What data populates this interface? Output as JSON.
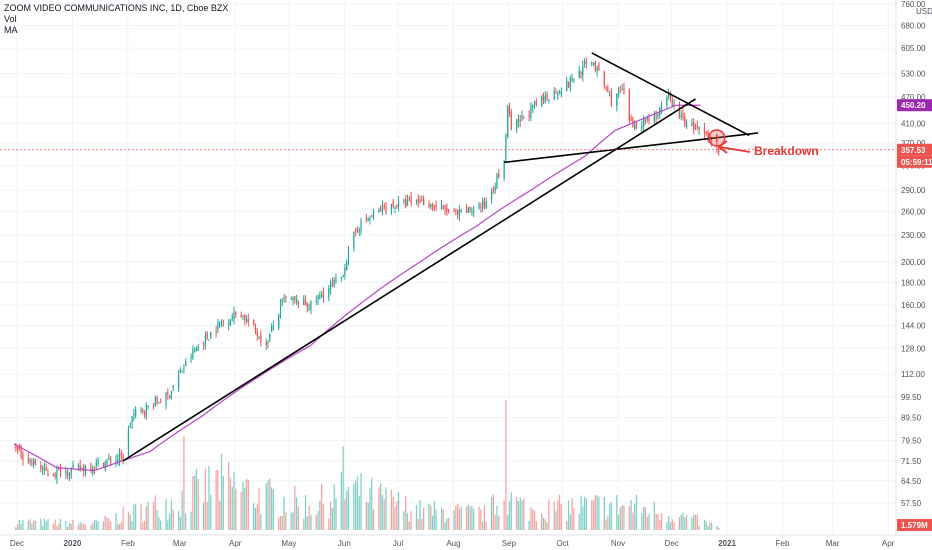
{
  "legend": {
    "title": "ZOOM VIDEO COMMUNICATIONS INC, 1D, Cboe BZX",
    "vol": "Vol",
    "ma": "MA"
  },
  "annotation": "Breakdown",
  "colors": {
    "up": "#26a69a",
    "down": "#ef5350",
    "up_vol": "#7fcfc5",
    "down_vol": "#f4a2a0",
    "ma": "#b845c8",
    "trendline": "#000000",
    "annotation": "#e53935",
    "badge_ma": "#9c27b0",
    "badge_price": "#ef5350",
    "grid": "#f0f3fa",
    "axis_text": "#50535e"
  },
  "chart_data": {
    "type": "candlestick",
    "yscale": "log",
    "ylim": [
      50,
      760
    ],
    "currency": "USD",
    "y_ticks": [
      "760.00",
      "680.00",
      "605.00",
      "530.00",
      "470.00",
      "410.00",
      "370.00",
      "330.00",
      "290.00",
      "260.00",
      "230.00",
      "200.00",
      "180.00",
      "160.00",
      "144.00",
      "128.00",
      "112.00",
      "99.50",
      "89.50",
      "79.50",
      "71.50",
      "64.50",
      "57.50"
    ],
    "x_ticks": [
      "Dec",
      "2020",
      "Feb",
      "Mar",
      "Apr",
      "May",
      "Jun",
      "Jul",
      "Aug",
      "Sep",
      "Oct",
      "Nov",
      "Dec",
      "2021",
      "Feb",
      "Mar",
      "Apr"
    ],
    "price_path": [
      [
        "2019-12-01",
        76
      ],
      [
        "2019-12-20",
        67
      ],
      [
        "2020-01-10",
        69
      ],
      [
        "2020-01-31",
        73
      ],
      [
        "2020-02-05",
        90
      ],
      [
        "2020-02-25",
        100
      ],
      [
        "2020-03-10",
        125
      ],
      [
        "2020-03-25",
        145
      ],
      [
        "2020-04-05",
        155
      ],
      [
        "2020-04-20",
        130
      ],
      [
        "2020-04-30",
        165
      ],
      [
        "2020-05-15",
        160
      ],
      [
        "2020-06-01",
        185
      ],
      [
        "2020-06-10",
        240
      ],
      [
        "2020-06-25",
        265
      ],
      [
        "2020-07-15",
        275
      ],
      [
        "2020-08-05",
        255
      ],
      [
        "2020-08-20",
        270
      ],
      [
        "2020-08-31",
        330
      ],
      [
        "2020-09-02",
        450
      ],
      [
        "2020-09-04",
        395
      ],
      [
        "2020-09-20",
        460
      ],
      [
        "2020-10-05",
        500
      ],
      [
        "2020-10-19",
        570
      ],
      [
        "2020-10-30",
        460
      ],
      [
        "2020-11-05",
        485
      ],
      [
        "2020-11-10",
        405
      ],
      [
        "2020-11-25",
        430
      ],
      [
        "2020-12-01",
        470
      ],
      [
        "2020-12-08",
        420
      ],
      [
        "2020-12-18",
        395
      ],
      [
        "2020-12-29",
        357.53
      ]
    ],
    "ma_path": [
      [
        "2019-12-01",
        78
      ],
      [
        "2019-12-25",
        69
      ],
      [
        "2020-01-15",
        68
      ],
      [
        "2020-02-15",
        75
      ],
      [
        "2020-03-15",
        90
      ],
      [
        "2020-04-15",
        110
      ],
      [
        "2020-05-15",
        130
      ],
      [
        "2020-06-15",
        165
      ],
      [
        "2020-07-15",
        200
      ],
      [
        "2020-08-15",
        240
      ],
      [
        "2020-09-15",
        290
      ],
      [
        "2020-10-15",
        345
      ],
      [
        "2020-11-01",
        395
      ],
      [
        "2020-11-20",
        425
      ],
      [
        "2020-12-05",
        450
      ],
      [
        "2020-12-20",
        450.2
      ]
    ],
    "volume_ylim": [
      0,
      90
    ],
    "volume_path": [
      [
        "2019-12-01",
        5
      ],
      [
        "2020-01-15",
        4
      ],
      [
        "2020-02-10",
        12
      ],
      [
        "2020-03-05",
        20
      ],
      [
        "2020-03-25",
        30
      ],
      [
        "2020-04-15",
        22
      ],
      [
        "2020-05-15",
        15
      ],
      [
        "2020-06-05",
        25
      ],
      [
        "2020-07-15",
        12
      ],
      [
        "2020-08-20",
        10
      ],
      [
        "2020-09-01",
        20
      ],
      [
        "2020-09-15",
        12
      ],
      [
        "2020-10-15",
        15
      ],
      [
        "2020-11-10",
        15
      ],
      [
        "2020-12-10",
        8
      ],
      [
        "2020-12-29",
        2
      ]
    ],
    "volume_spikes": [
      [
        "2020-03-05",
        65
      ],
      [
        "2020-06-02",
        58
      ],
      [
        "2020-09-01",
        90
      ]
    ],
    "trendlines": [
      {
        "from": [
          "2020-01-31",
          71.5
        ],
        "to": [
          "2020-12-16",
          465
        ]
      },
      {
        "from": [
          "2020-08-31",
          335
        ],
        "to": [
          "2021-01-20",
          390
        ]
      },
      {
        "from": [
          "2020-10-19",
          590
        ],
        "to": [
          "2021-01-15",
          385
        ]
      }
    ],
    "ma_last": "450.20",
    "last_price": "357.53",
    "countdown": "05:59:11",
    "volume_last": "1.579M",
    "price_line": 357.53,
    "breakdown_point": [
      "2020-12-29",
      380
    ]
  }
}
